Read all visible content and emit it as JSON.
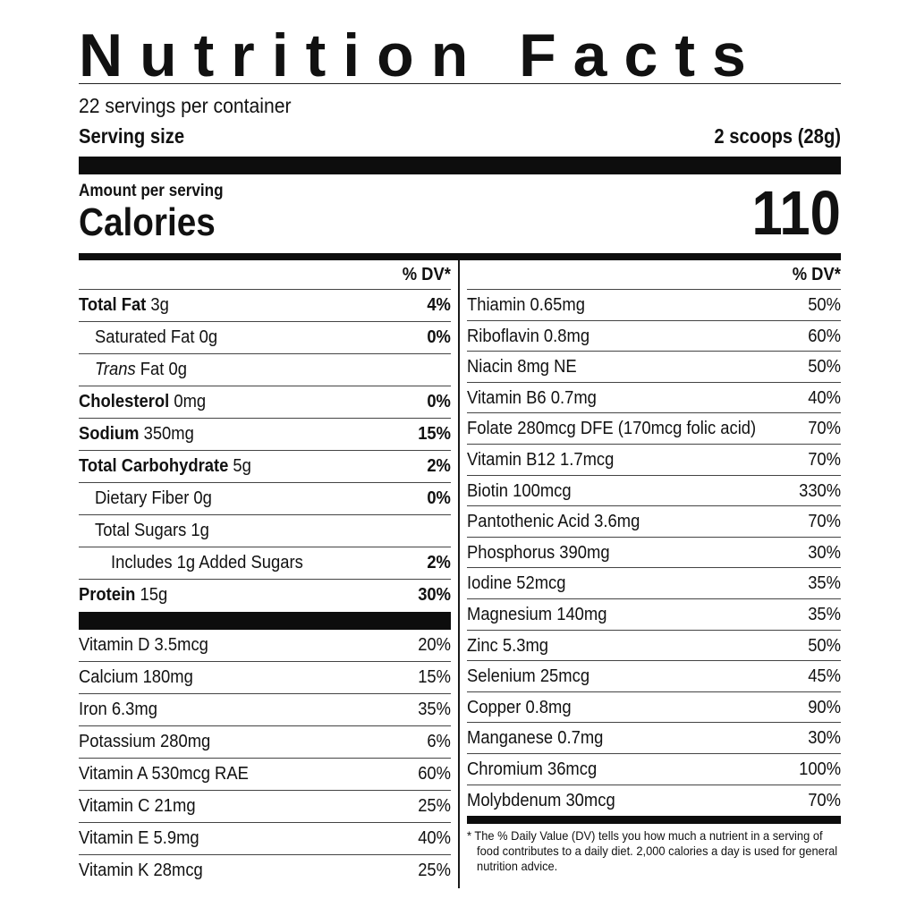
{
  "title": "Nutrition Facts",
  "servings_per_container": "22 servings per container",
  "serving_size": {
    "label": "Serving size",
    "value": "2 scoops (28g)"
  },
  "amount_per_serving": "Amount per serving",
  "calories": {
    "label": "Calories",
    "value": "110"
  },
  "dv_header": "% DV*",
  "left_main": {
    "total_fat": {
      "label": "Total Fat",
      "amount": " 3g",
      "dv": "4%"
    },
    "saturated_fat": {
      "label": "Saturated Fat 0g",
      "dv": "0%"
    },
    "trans_fat": {
      "label_italic": "Trans",
      "label_rest": " Fat 0g"
    },
    "cholesterol": {
      "label": "Cholesterol",
      "amount": " 0mg",
      "dv": "0%"
    },
    "sodium": {
      "label": "Sodium",
      "amount": " 350mg",
      "dv": "15%"
    },
    "total_carbohydrate": {
      "label": "Total Carbohydrate",
      "amount": " 5g",
      "dv": "2%"
    },
    "dietary_fiber": {
      "label": "Dietary Fiber 0g",
      "dv": "0%"
    },
    "total_sugars": {
      "label": "Total Sugars 1g"
    },
    "added_sugars": {
      "label": "Includes 1g Added Sugars",
      "dv": "2%"
    },
    "protein": {
      "label": "Protein",
      "amount": " 15g",
      "dv": "30%"
    }
  },
  "left_vitamins": [
    {
      "label": "Vitamin D 3.5mcg",
      "dv": "20%"
    },
    {
      "label": "Calcium 180mg",
      "dv": "15%"
    },
    {
      "label": "Iron 6.3mg",
      "dv": "35%"
    },
    {
      "label": "Potassium 280mg",
      "dv": "6%"
    },
    {
      "label": "Vitamin A 530mcg RAE",
      "dv": "60%"
    },
    {
      "label": "Vitamin C 21mg",
      "dv": "25%"
    },
    {
      "label": "Vitamin E 5.9mg",
      "dv": "40%"
    },
    {
      "label": "Vitamin K 28mcg",
      "dv": "25%"
    }
  ],
  "right_nutrients": [
    {
      "label": "Thiamin 0.65mg",
      "dv": "50%"
    },
    {
      "label": "Riboflavin 0.8mg",
      "dv": "60%"
    },
    {
      "label": "Niacin 8mg NE",
      "dv": "50%"
    },
    {
      "label": "Vitamin B6 0.7mg",
      "dv": "40%"
    },
    {
      "label": "Folate 280mcg DFE (170mcg folic acid)",
      "dv": "70%"
    },
    {
      "label": "Vitamin B12 1.7mcg",
      "dv": "70%"
    },
    {
      "label": "Biotin 100mcg",
      "dv": "330%"
    },
    {
      "label": "Pantothenic Acid 3.6mg",
      "dv": "70%"
    },
    {
      "label": "Phosphorus 390mg",
      "dv": "30%"
    },
    {
      "label": "Iodine 52mcg",
      "dv": "35%"
    },
    {
      "label": "Magnesium 140mg",
      "dv": "35%"
    },
    {
      "label": "Zinc 5.3mg",
      "dv": "50%"
    },
    {
      "label": "Selenium 25mcg",
      "dv": "45%"
    },
    {
      "label": "Copper 0.8mg",
      "dv": "90%"
    },
    {
      "label": "Manganese 0.7mg",
      "dv": "30%"
    },
    {
      "label": "Chromium 36mcg",
      "dv": "100%"
    },
    {
      "label": "Molybdenum 30mcg",
      "dv": "70%"
    }
  ],
  "footnote": "* The % Daily Value (DV) tells you how much a nutrient in a serving of food contributes to a daily diet. 2,000 calories a day is used for general nutrition advice."
}
